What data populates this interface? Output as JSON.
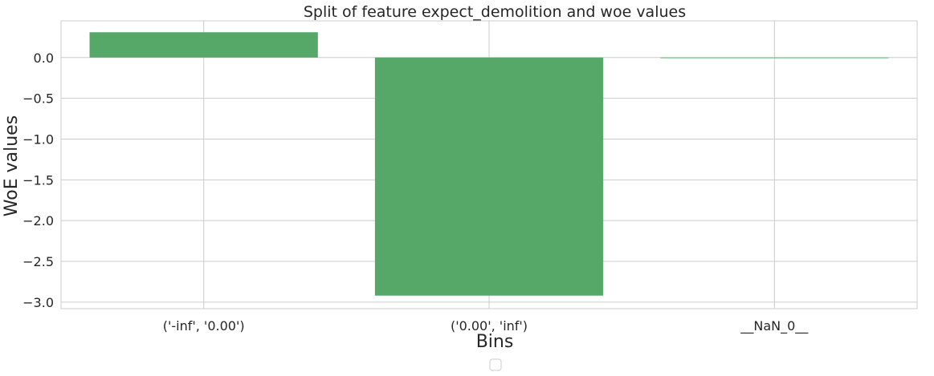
{
  "chart_data": {
    "type": "bar",
    "title": "Split of feature expect_demolition and woe values",
    "xlabel": "Bins",
    "ylabel": "WoE values",
    "categories": [
      "('-inf', '0.00')",
      "('0.00', 'inf')",
      "__NaN_0__"
    ],
    "values": [
      0.31,
      -2.92,
      0.0
    ],
    "ylim": [
      -3.08,
      0.45
    ],
    "yticks": [
      0.0,
      -0.5,
      -1.0,
      -1.5,
      -2.0,
      -2.5,
      -3.0
    ],
    "ytick_labels": [
      "0.0",
      "−0.5",
      "−1.0",
      "−1.5",
      "−2.0",
      "−2.5",
      "−3.0"
    ],
    "grid": true,
    "legend": "bottom-center",
    "bar_color": "#55a868",
    "grid_color": "#cccccc"
  }
}
